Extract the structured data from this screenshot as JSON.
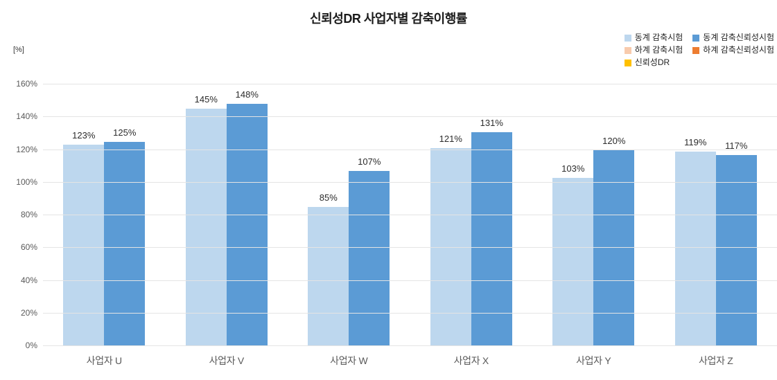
{
  "legend": {
    "items": [
      {
        "label": "동계 감축시험",
        "color": "#BDD7EE"
      },
      {
        "label": "동계 감축신뢰성시험",
        "color": "#5B9BD5"
      },
      {
        "label": "하계 감축시험",
        "color": "#F8CBAD"
      },
      {
        "label": "하계 감축신뢰성시험",
        "color": "#ED7D31"
      },
      {
        "label": "신뢰성DR",
        "color": "#FFC000"
      }
    ],
    "position": "top-right",
    "columns": 2
  },
  "chart_data": {
    "type": "bar",
    "title": "신뢰성DR 사업자별 감축이행률",
    "unit_label": "[%]",
    "categories": [
      "사업자 U",
      "사업자 V",
      "사업자 W",
      "사업자 X",
      "사업자 Y",
      "사업자 Z"
    ],
    "series": [
      {
        "name": "동계 감축시험",
        "color": "#BDD7EE",
        "values": [
          123,
          145,
          85,
          121,
          103,
          119
        ]
      },
      {
        "name": "동계 감축신뢰성시험",
        "color": "#5B9BD5",
        "values": [
          125,
          148,
          107,
          131,
          120,
          117
        ]
      }
    ],
    "value_label_suffix": "%",
    "ylim": [
      0,
      160
    ],
    "ytick_step": 20,
    "ytick_labels": [
      "0%",
      "20%",
      "40%",
      "60%",
      "80%",
      "100%",
      "120%",
      "140%",
      "160%"
    ],
    "grid": true,
    "gridline_color": "#e4e4e4",
    "legend_position": "top-right"
  }
}
